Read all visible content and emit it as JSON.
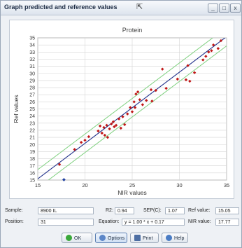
{
  "window": {
    "title": "Graph predicted and reference values",
    "controls": {
      "minimize": "_",
      "maximize": "□",
      "close": "x"
    }
  },
  "chart_data": {
    "type": "scatter",
    "title": "Protein",
    "xlabel": "NIR values",
    "ylabel": "Ref values",
    "xlim": [
      15,
      35
    ],
    "ylim": [
      15,
      35
    ],
    "x_ticks": [
      "15",
      "20",
      "25",
      "30",
      "35"
    ],
    "y_ticks": [
      "15",
      "16",
      "17",
      "18",
      "19",
      "20",
      "21",
      "22",
      "23",
      "24",
      "25",
      "26",
      "27",
      "28",
      "29",
      "30",
      "31",
      "32",
      "33",
      "34",
      "35"
    ],
    "grid": true,
    "regression_line": {
      "slope": 1.0,
      "intercept": 0.17,
      "x_range": [
        15,
        35
      ],
      "color": "#1f2f8a"
    },
    "confidence_band": {
      "offset": 1.3,
      "color": "#7fd07f"
    },
    "marker_color": "#c01818",
    "highlight_point": {
      "x": 17.77,
      "y": 15.05,
      "color": "#1f3fa0"
    },
    "points": [
      {
        "x": 17.3,
        "y": 17.2
      },
      {
        "x": 18.9,
        "y": 19.3
      },
      {
        "x": 19.6,
        "y": 20.3
      },
      {
        "x": 20.0,
        "y": 20.6
      },
      {
        "x": 20.4,
        "y": 21.1
      },
      {
        "x": 21.4,
        "y": 21.9
      },
      {
        "x": 21.6,
        "y": 22.6
      },
      {
        "x": 21.8,
        "y": 21.6
      },
      {
        "x": 22.0,
        "y": 22.4
      },
      {
        "x": 22.1,
        "y": 21.3
      },
      {
        "x": 22.3,
        "y": 22.7
      },
      {
        "x": 22.4,
        "y": 21.0
      },
      {
        "x": 22.6,
        "y": 22.2
      },
      {
        "x": 22.8,
        "y": 22.9
      },
      {
        "x": 23.0,
        "y": 23.2
      },
      {
        "x": 23.1,
        "y": 22.5
      },
      {
        "x": 23.3,
        "y": 22.7
      },
      {
        "x": 23.6,
        "y": 23.6
      },
      {
        "x": 23.8,
        "y": 22.3
      },
      {
        "x": 24.0,
        "y": 23.9
      },
      {
        "x": 24.2,
        "y": 22.8
      },
      {
        "x": 24.5,
        "y": 24.3
      },
      {
        "x": 24.8,
        "y": 25.2
      },
      {
        "x": 25.0,
        "y": 24.6
      },
      {
        "x": 25.2,
        "y": 26.0
      },
      {
        "x": 25.3,
        "y": 25.2
      },
      {
        "x": 25.4,
        "y": 27.1
      },
      {
        "x": 25.6,
        "y": 27.4
      },
      {
        "x": 25.8,
        "y": 26.3
      },
      {
        "x": 26.1,
        "y": 25.6
      },
      {
        "x": 26.5,
        "y": 26.2
      },
      {
        "x": 27.0,
        "y": 27.7
      },
      {
        "x": 27.1,
        "y": 26.1
      },
      {
        "x": 27.5,
        "y": 27.6
      },
      {
        "x": 28.2,
        "y": 30.6
      },
      {
        "x": 28.6,
        "y": 27.9
      },
      {
        "x": 29.8,
        "y": 29.2
      },
      {
        "x": 30.9,
        "y": 31.1
      },
      {
        "x": 31.1,
        "y": 28.9
      },
      {
        "x": 31.6,
        "y": 30.1
      },
      {
        "x": 32.8,
        "y": 32.4
      },
      {
        "x": 33.1,
        "y": 33.0
      },
      {
        "x": 33.4,
        "y": 33.2
      },
      {
        "x": 33.6,
        "y": 34.0
      },
      {
        "x": 34.1,
        "y": 33.5
      },
      {
        "x": 34.4,
        "y": 34.6
      },
      {
        "x": 32.5,
        "y": 31.9
      },
      {
        "x": 30.7,
        "y": 29.1
      }
    ]
  },
  "info": {
    "sample_label": "Sample:",
    "sample_value": "8900 IL",
    "r2_label": "R2:",
    "r2_value": "0.94",
    "sep_label": "SEP(C):",
    "sep_value": "1.07",
    "ref_label": "Ref value:",
    "ref_value": "15.05",
    "position_label": "Position:",
    "position_value": "31",
    "equation_label": "Equation:",
    "equation_value": "y = 1.00 * x + 0.17",
    "nir_label": "NIR value:",
    "nir_value": "17.77"
  },
  "buttons": {
    "ok": "OK",
    "options": "Options",
    "print": "Print",
    "help": "Help"
  },
  "colors": {
    "ok_icon": "#3aa83a",
    "options_icon": "#5b86c8",
    "print_icon": "#4d6ea3",
    "help_icon": "#4a7cc4"
  }
}
